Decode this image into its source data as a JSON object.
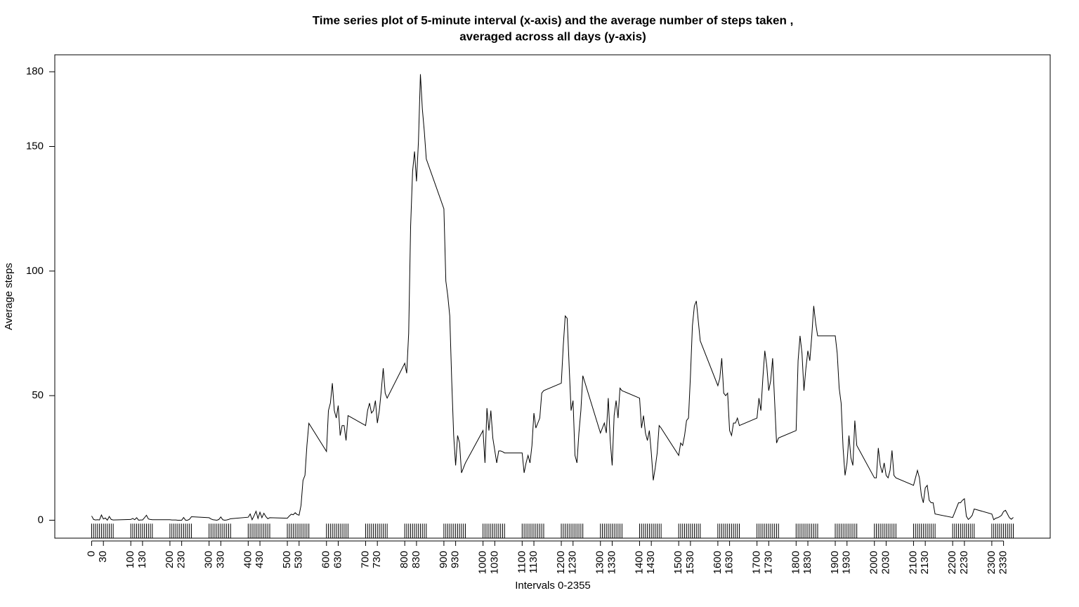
{
  "chart_data": {
    "type": "line",
    "title": [
      "Time series plot of 5-minute interval (x-axis) and the average number of steps taken ,",
      "averaged across all days (y-axis)"
    ],
    "xlabel": "Intervals 0-2355",
    "ylabel": "Average steps",
    "color": "#000000",
    "rug": true,
    "xlim": [
      -94.2,
      2449.2
    ],
    "ylim": [
      -7.2,
      186.8
    ],
    "yticks": [
      0,
      50,
      100,
      150,
      180
    ],
    "xticks": [
      0,
      30,
      100,
      130,
      200,
      230,
      300,
      330,
      400,
      430,
      500,
      530,
      600,
      630,
      700,
      730,
      800,
      830,
      900,
      930,
      1000,
      1030,
      1100,
      1130,
      1200,
      1230,
      1300,
      1330,
      1400,
      1430,
      1500,
      1530,
      1600,
      1630,
      1700,
      1730,
      1800,
      1830,
      1900,
      1930,
      2000,
      2030,
      2100,
      2130,
      2200,
      2230,
      2300,
      2330
    ],
    "x": [
      0,
      5,
      10,
      15,
      20,
      25,
      30,
      35,
      40,
      45,
      50,
      55,
      100,
      105,
      110,
      115,
      120,
      125,
      130,
      135,
      140,
      145,
      150,
      155,
      200,
      205,
      210,
      215,
      220,
      225,
      230,
      235,
      240,
      245,
      250,
      255,
      300,
      305,
      310,
      315,
      320,
      325,
      330,
      335,
      340,
      345,
      350,
      355,
      400,
      405,
      410,
      415,
      420,
      425,
      430,
      435,
      440,
      445,
      450,
      455,
      500,
      505,
      510,
      515,
      520,
      525,
      530,
      535,
      540,
      545,
      550,
      555,
      600,
      605,
      610,
      615,
      620,
      625,
      630,
      635,
      640,
      645,
      650,
      655,
      700,
      705,
      710,
      715,
      720,
      725,
      730,
      735,
      740,
      745,
      750,
      755,
      800,
      805,
      810,
      815,
      820,
      825,
      830,
      835,
      840,
      845,
      850,
      855,
      900,
      905,
      910,
      915,
      920,
      925,
      930,
      935,
      940,
      945,
      950,
      955,
      1000,
      1005,
      1010,
      1015,
      1020,
      1025,
      1030,
      1035,
      1040,
      1045,
      1050,
      1055,
      1100,
      1105,
      1110,
      1115,
      1120,
      1125,
      1130,
      1135,
      1140,
      1145,
      1150,
      1155,
      1200,
      1205,
      1210,
      1215,
      1220,
      1225,
      1230,
      1235,
      1240,
      1245,
      1250,
      1255,
      1300,
      1305,
      1310,
      1315,
      1320,
      1325,
      1330,
      1335,
      1340,
      1345,
      1350,
      1355,
      1400,
      1405,
      1410,
      1415,
      1420,
      1425,
      1430,
      1435,
      1440,
      1445,
      1450,
      1455,
      1500,
      1505,
      1510,
      1515,
      1520,
      1525,
      1530,
      1535,
      1540,
      1545,
      1550,
      1555,
      1600,
      1605,
      1610,
      1615,
      1620,
      1625,
      1630,
      1635,
      1640,
      1645,
      1650,
      1655,
      1700,
      1705,
      1710,
      1715,
      1720,
      1725,
      1730,
      1735,
      1740,
      1745,
      1750,
      1755,
      1800,
      1805,
      1810,
      1815,
      1820,
      1825,
      1830,
      1835,
      1840,
      1845,
      1850,
      1855,
      1900,
      1905,
      1910,
      1915,
      1920,
      1925,
      1930,
      1935,
      1940,
      1945,
      1950,
      1955,
      2000,
      2005,
      2010,
      2015,
      2020,
      2025,
      2030,
      2035,
      2040,
      2045,
      2050,
      2055,
      2100,
      2105,
      2110,
      2115,
      2120,
      2125,
      2130,
      2135,
      2140,
      2145,
      2150,
      2155,
      2200,
      2205,
      2210,
      2215,
      2220,
      2225,
      2230,
      2235,
      2240,
      2245,
      2250,
      2255,
      2300,
      2305,
      2310,
      2315,
      2320,
      2325,
      2330,
      2335,
      2340,
      2345,
      2350,
      2355
    ],
    "values": [
      1.7,
      0.3,
      0.1,
      0.2,
      0.1,
      2.1,
      0.5,
      0.9,
      0,
      1.5,
      0.3,
      0.1,
      0.3,
      0.7,
      0.2,
      1.0,
      0,
      0.1,
      0.1,
      1.0,
      2.0,
      0.5,
      0.3,
      0.2,
      0.2,
      0.1,
      0.1,
      0.1,
      0,
      0,
      0,
      1.1,
      0,
      0,
      0.4,
      1.4,
      1.0,
      0.5,
      0.2,
      0.1,
      0,
      0.3,
      1.3,
      0.2,
      0,
      0.1,
      0.3,
      0.6,
      1.2,
      2.5,
      0.2,
      1.8,
      3.6,
      0.7,
      3.2,
      1.0,
      2.8,
      1.5,
      0.6,
      1.0,
      0.8,
      1.7,
      2.4,
      2.2,
      3.0,
      2.3,
      2.0,
      6.0,
      16.0,
      18.0,
      30.0,
      38.9,
      27.6,
      44.0,
      47.0,
      55.0,
      44.0,
      41.0,
      46.0,
      34.0,
      38.0,
      38.0,
      32.0,
      42.0,
      38.0,
      44.0,
      47.0,
      43.0,
      44.0,
      48.0,
      39.0,
      44.0,
      52.0,
      61.0,
      51.0,
      49.0,
      63.0,
      59.0,
      75.0,
      118.0,
      140.0,
      148.0,
      136.0,
      152.0,
      179.0,
      165.0,
      156.0,
      145.0,
      125.0,
      96.0,
      90.0,
      82.0,
      56.0,
      34.0,
      22.0,
      34.0,
      31.0,
      19.0,
      21.0,
      23.0,
      36.0,
      23.0,
      45.0,
      36.0,
      44.0,
      33.0,
      28.0,
      23.0,
      27.8,
      27.8,
      27.5,
      27.0,
      27.0,
      19.0,
      23.0,
      26.0,
      23.0,
      30.0,
      43.0,
      37.0,
      39.0,
      41.0,
      51.0,
      52.0,
      55.0,
      70.0,
      82.0,
      81.0,
      62.0,
      44.0,
      48.0,
      26.0,
      23.0,
      35.0,
      44.0,
      58.0,
      35.0,
      37.0,
      39.0,
      35.0,
      49.0,
      32.0,
      22.0,
      42.0,
      48.0,
      41.0,
      53.0,
      52.0,
      49.0,
      37.0,
      42.0,
      35.0,
      32.0,
      36.0,
      27.0,
      16.0,
      21.0,
      27.0,
      38.0,
      37.0,
      26.0,
      31.0,
      30.0,
      34.0,
      40.0,
      41.0,
      58.0,
      78.0,
      86.0,
      88.0,
      80.0,
      72.0,
      54.0,
      57.0,
      65.0,
      51.0,
      50.0,
      51.0,
      36.0,
      34.0,
      39.0,
      39.0,
      41.0,
      38.0,
      41.0,
      49.0,
      44.0,
      57.0,
      68.0,
      62.0,
      52.0,
      56.0,
      65.0,
      48.0,
      31.0,
      33.0,
      36.0,
      64.0,
      74.0,
      67.0,
      52.0,
      61.0,
      68.0,
      64.0,
      74.0,
      86.0,
      79.0,
      74.0,
      74.0,
      67.0,
      53.0,
      47.0,
      29.0,
      18.0,
      23.0,
      34.0,
      25.0,
      22.0,
      40.0,
      30.0,
      17.0,
      17.0,
      29.0,
      22.0,
      19.0,
      23.0,
      18.0,
      17.0,
      20.0,
      28.0,
      18.0,
      17.0,
      14.0,
      17.0,
      20.0,
      17.0,
      10.0,
      7.0,
      13.0,
      14.0,
      8.0,
      7.0,
      7.0,
      2.5,
      1.1,
      3.0,
      5.0,
      7.0,
      7.0,
      8.0,
      8.6,
      1.6,
      0.3,
      1.0,
      2.0,
      4.5,
      2.5,
      0.2,
      0.8,
      1.0,
      1.4,
      2.0,
      3.5,
      4.0,
      2.5,
      1.0,
      0.4,
      1.1
    ]
  }
}
